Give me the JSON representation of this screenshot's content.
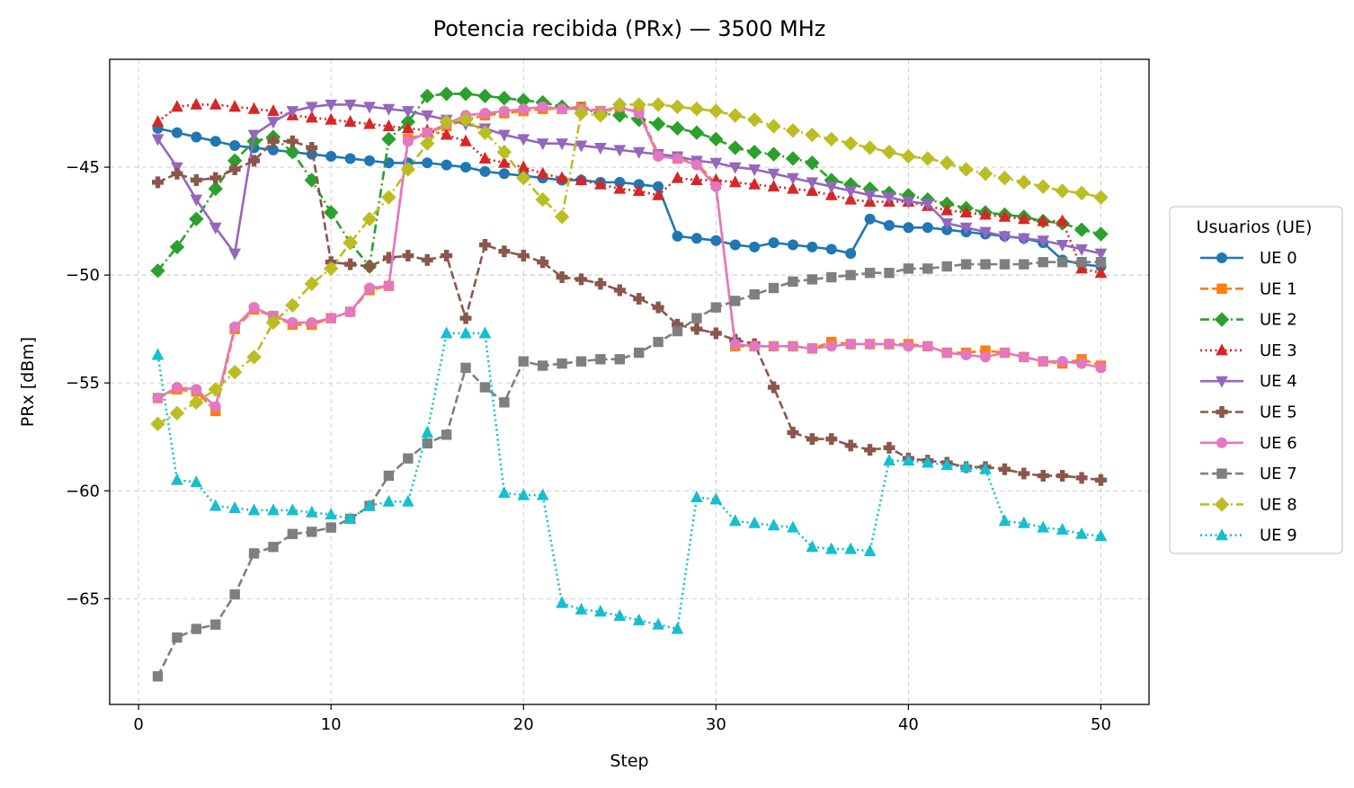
{
  "chart_data": {
    "type": "line",
    "title": "Potencia recibida (PRx) — 3500 MHz",
    "xlabel": "Step",
    "ylabel": "PRx [dBm]",
    "xlim": [
      -1.5,
      52.5
    ],
    "ylim": [
      -69.9,
      -40.0
    ],
    "xticks": [
      0,
      10,
      20,
      30,
      40,
      50
    ],
    "yticks": [
      -65,
      -60,
      -55,
      -50,
      -45
    ],
    "xtick_labels": [
      "0",
      "10",
      "20",
      "30",
      "40",
      "50"
    ],
    "ytick_labels": [
      "−65",
      "−60",
      "−55",
      "−50",
      "−45"
    ],
    "grid": true,
    "legend": {
      "title": "Usuarios (UE)",
      "placement": "right, outside plot area"
    },
    "x": [
      1,
      2,
      3,
      4,
      5,
      6,
      7,
      8,
      9,
      10,
      11,
      12,
      13,
      14,
      15,
      16,
      17,
      18,
      19,
      20,
      21,
      22,
      23,
      24,
      25,
      26,
      27,
      28,
      29,
      30,
      31,
      32,
      33,
      34,
      35,
      36,
      37,
      38,
      39,
      40,
      41,
      42,
      43,
      44,
      45,
      46,
      47,
      48,
      49,
      50
    ],
    "series": [
      {
        "name": "UE 0",
        "color": "#1f77b4",
        "marker": "circle",
        "dash": "solid",
        "values": [
          -43.2,
          -43.4,
          -43.6,
          -43.8,
          -44.0,
          -44.1,
          -44.2,
          -44.3,
          -44.4,
          -44.5,
          -44.6,
          -44.7,
          -44.8,
          -44.8,
          -44.8,
          -44.9,
          -45.0,
          -45.2,
          -45.3,
          -45.4,
          -45.5,
          -45.6,
          -45.6,
          -45.7,
          -45.7,
          -45.8,
          -45.9,
          -48.2,
          -48.3,
          -48.4,
          -48.6,
          -48.7,
          -48.5,
          -48.6,
          -48.7,
          -48.8,
          -49.0,
          -47.4,
          -47.7,
          -47.8,
          -47.8,
          -47.9,
          -48.0,
          -48.1,
          -48.2,
          -48.3,
          -48.5,
          -49.3,
          -49.5,
          -49.6
        ]
      },
      {
        "name": "UE 1",
        "color": "#ff7f0e",
        "marker": "square",
        "dash": "dashed",
        "values": [
          -55.7,
          -55.3,
          -55.4,
          -56.3,
          -52.5,
          -51.6,
          -51.9,
          -52.3,
          -52.3,
          -52.0,
          -51.7,
          -50.7,
          -50.5,
          -43.7,
          -43.4,
          -43.1,
          -42.8,
          -42.6,
          -42.5,
          -42.4,
          -42.3,
          -42.3,
          -42.2,
          -42.4,
          -42.3,
          -42.4,
          -44.4,
          -44.6,
          -44.8,
          -45.8,
          -53.3,
          -53.3,
          -53.3,
          -53.3,
          -53.4,
          -53.1,
          -53.2,
          -53.2,
          -53.2,
          -53.2,
          -53.3,
          -53.6,
          -53.6,
          -53.5,
          -53.6,
          -53.8,
          -54.0,
          -54.1,
          -53.9,
          -54.2
        ]
      },
      {
        "name": "UE 2",
        "color": "#2ca02c",
        "marker": "diamond",
        "dash": "dashdot",
        "values": [
          -49.8,
          -48.7,
          -47.4,
          -46.0,
          -44.7,
          -43.8,
          -43.6,
          -44.3,
          -45.6,
          -47.1,
          -48.5,
          -49.6,
          -43.7,
          -42.9,
          -41.7,
          -41.6,
          -41.6,
          -41.7,
          -41.8,
          -41.9,
          -42.0,
          -42.2,
          -42.3,
          -42.5,
          -42.6,
          -42.8,
          -43.0,
          -43.2,
          -43.4,
          -43.7,
          -44.1,
          -44.3,
          -44.4,
          -44.6,
          -44.8,
          -45.6,
          -45.8,
          -46.0,
          -46.2,
          -46.3,
          -46.5,
          -46.7,
          -46.9,
          -47.1,
          -47.2,
          -47.3,
          -47.5,
          -47.6,
          -47.9,
          -48.1
        ]
      },
      {
        "name": "UE 3",
        "color": "#d62728",
        "marker": "triangle-up",
        "dash": "dotted",
        "values": [
          -42.9,
          -42.2,
          -42.1,
          -42.1,
          -42.2,
          -42.3,
          -42.4,
          -42.6,
          -42.7,
          -42.8,
          -42.9,
          -43.0,
          -43.1,
          -43.2,
          -43.3,
          -43.5,
          -43.8,
          -44.6,
          -44.8,
          -45.0,
          -45.3,
          -45.5,
          -45.6,
          -45.8,
          -46.0,
          -46.1,
          -46.3,
          -45.5,
          -45.6,
          -45.6,
          -45.7,
          -45.8,
          -45.9,
          -46.0,
          -46.1,
          -46.3,
          -46.5,
          -46.6,
          -46.6,
          -46.6,
          -46.8,
          -47.0,
          -47.1,
          -47.2,
          -47.3,
          -47.4,
          -47.5,
          -47.5,
          -49.7,
          -49.9
        ]
      },
      {
        "name": "UE 4",
        "color": "#9467bd",
        "marker": "triangle-down",
        "dash": "solid",
        "values": [
          -43.7,
          -45.0,
          -46.5,
          -47.8,
          -49.0,
          -43.5,
          -42.9,
          -42.4,
          -42.2,
          -42.1,
          -42.1,
          -42.2,
          -42.3,
          -42.4,
          -42.6,
          -42.8,
          -43.0,
          -43.2,
          -43.5,
          -43.7,
          -43.9,
          -43.9,
          -44.0,
          -44.1,
          -44.2,
          -44.3,
          -44.4,
          -44.5,
          -44.7,
          -44.8,
          -45.0,
          -45.1,
          -45.3,
          -45.5,
          -45.7,
          -45.9,
          -46.1,
          -46.3,
          -46.4,
          -46.6,
          -46.7,
          -47.6,
          -47.8,
          -48.0,
          -48.2,
          -48.3,
          -48.4,
          -48.6,
          -48.8,
          -49.0
        ]
      },
      {
        "name": "UE 5",
        "color": "#8c564b",
        "marker": "plus",
        "dash": "dashed",
        "values": [
          -45.7,
          -45.3,
          -45.6,
          -45.5,
          -45.1,
          -44.7,
          -43.8,
          -43.8,
          -44.1,
          -49.4,
          -49.5,
          -49.6,
          -49.2,
          -49.1,
          -49.3,
          -49.1,
          -52.0,
          -48.6,
          -48.9,
          -49.1,
          -49.4,
          -50.1,
          -50.2,
          -50.4,
          -50.7,
          -51.1,
          -51.5,
          -52.3,
          -52.5,
          -52.7,
          -53.0,
          -53.2,
          -55.2,
          -57.3,
          -57.6,
          -57.6,
          -57.9,
          -58.1,
          -58.0,
          -58.5,
          -58.6,
          -58.7,
          -58.9,
          -58.9,
          -59.0,
          -59.2,
          -59.3,
          -59.3,
          -59.4,
          -59.5
        ]
      },
      {
        "name": "UE 6",
        "color": "#e377c2",
        "marker": "circle",
        "dash": "solid",
        "values": [
          -55.7,
          -55.2,
          -55.3,
          -56.1,
          -52.4,
          -51.5,
          -51.9,
          -52.2,
          -52.2,
          -52.0,
          -51.7,
          -50.6,
          -50.5,
          -43.8,
          -43.4,
          -43.0,
          -42.6,
          -42.5,
          -42.4,
          -42.3,
          -42.2,
          -42.3,
          -42.3,
          -42.4,
          -42.2,
          -42.5,
          -44.5,
          -44.6,
          -44.9,
          -45.9,
          -53.2,
          -53.3,
          -53.3,
          -53.3,
          -53.4,
          -53.3,
          -53.2,
          -53.2,
          -53.2,
          -53.3,
          -53.3,
          -53.6,
          -53.7,
          -53.8,
          -53.6,
          -53.8,
          -54.0,
          -54.0,
          -54.1,
          -54.3
        ]
      },
      {
        "name": "UE 7",
        "color": "#7f7f7f",
        "marker": "square",
        "dash": "dashed",
        "values": [
          -68.6,
          -66.8,
          -66.4,
          -66.2,
          -64.8,
          -62.9,
          -62.6,
          -62.0,
          -61.9,
          -61.7,
          -61.3,
          -60.7,
          -59.3,
          -58.5,
          -57.8,
          -57.4,
          -54.3,
          -55.2,
          -55.9,
          -54.0,
          -54.2,
          -54.1,
          -54.0,
          -53.9,
          -53.9,
          -53.6,
          -53.1,
          -52.6,
          -52.0,
          -51.5,
          -51.2,
          -50.9,
          -50.6,
          -50.3,
          -50.2,
          -50.1,
          -50.0,
          -49.9,
          -49.9,
          -49.7,
          -49.7,
          -49.6,
          -49.5,
          -49.5,
          -49.5,
          -49.5,
          -49.4,
          -49.4,
          -49.4,
          -49.4
        ]
      },
      {
        "name": "UE 8",
        "color": "#bcbd22",
        "marker": "diamond",
        "dash": "dashdot",
        "values": [
          -56.9,
          -56.4,
          -55.9,
          -55.3,
          -54.5,
          -53.8,
          -52.2,
          -51.4,
          -50.4,
          -49.7,
          -48.5,
          -47.4,
          -46.4,
          -45.1,
          -43.9,
          -42.9,
          -42.8,
          -43.4,
          -44.3,
          -45.5,
          -46.5,
          -47.3,
          -42.5,
          -42.6,
          -42.1,
          -42.1,
          -42.1,
          -42.2,
          -42.3,
          -42.4,
          -42.6,
          -42.8,
          -43.1,
          -43.3,
          -43.5,
          -43.7,
          -43.9,
          -44.1,
          -44.3,
          -44.5,
          -44.6,
          -44.8,
          -45.1,
          -45.3,
          -45.5,
          -45.7,
          -45.9,
          -46.1,
          -46.2,
          -46.4
        ]
      },
      {
        "name": "UE 9",
        "color": "#17becf",
        "marker": "triangle-up",
        "dash": "dotted",
        "values": [
          -53.7,
          -59.5,
          -59.6,
          -60.7,
          -60.8,
          -60.9,
          -60.9,
          -60.9,
          -61.0,
          -61.1,
          -61.3,
          -60.7,
          -60.5,
          -60.5,
          -57.3,
          -52.7,
          -52.7,
          -52.7,
          -60.1,
          -60.2,
          -60.2,
          -65.2,
          -65.5,
          -65.6,
          -65.8,
          -66.0,
          -66.2,
          -66.4,
          -60.3,
          -60.4,
          -61.4,
          -61.5,
          -61.6,
          -61.7,
          -62.6,
          -62.7,
          -62.7,
          -62.8,
          -58.6,
          -58.6,
          -58.7,
          -58.8,
          -58.9,
          -59.0,
          -61.4,
          -61.5,
          -61.7,
          -61.8,
          -62.0,
          -62.1
        ]
      }
    ]
  }
}
